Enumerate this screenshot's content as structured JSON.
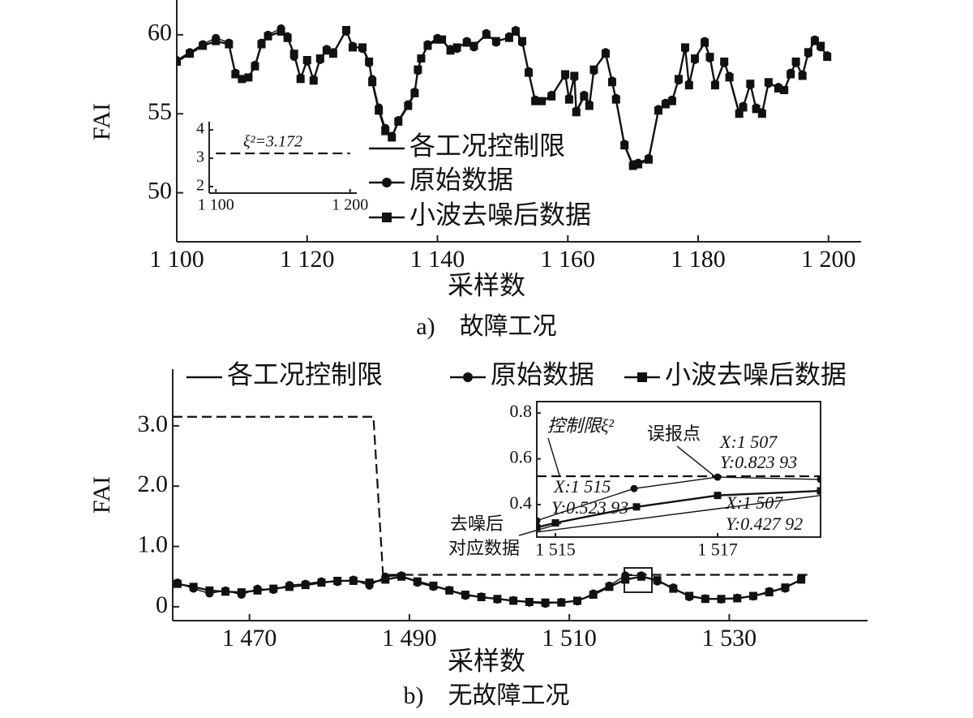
{
  "chart_data": [
    {
      "type": "line",
      "xlabel": "采样数",
      "ylabel": "FAI",
      "caption": "a)　故障工况",
      "xlim": [
        1100,
        1205
      ],
      "ylim": [
        46.9,
        62.2
      ],
      "xticks": [
        {
          "value": 1100,
          "label": "1 100"
        },
        {
          "value": 1120,
          "label": "1 120"
        },
        {
          "value": 1140,
          "label": "1 140"
        },
        {
          "value": 1160,
          "label": "1 160"
        },
        {
          "value": 1180,
          "label": "1 180"
        },
        {
          "value": 1200,
          "label": "1 200"
        }
      ],
      "yticks": [
        50,
        55,
        60
      ],
      "series": [
        {
          "name": "原始数据",
          "color": "#111111",
          "style": "solid",
          "marker": "circle",
          "x": [
            1100,
            1102,
            1104,
            1106,
            1108,
            1109,
            1110,
            1111,
            1112,
            1113,
            1114,
            1116,
            1117,
            1118,
            1119,
            1120,
            1121,
            1122,
            1123,
            1124,
            1126,
            1127,
            1128.5,
            1129.5,
            1130,
            1131,
            1132,
            1133,
            1134,
            1135.5,
            1136.5,
            1137,
            1137.5,
            1138.5,
            1140,
            1140.7,
            1142,
            1143,
            1144.5,
            1145.6,
            1147.5,
            1149,
            1151,
            1152,
            1153,
            1154,
            1155,
            1156,
            1157.5,
            1159.6,
            1160.2,
            1161,
            1161.3,
            1162.5,
            1163.3,
            1164,
            1165.8,
            1166.8,
            1167.4,
            1168.7,
            1170,
            1170.8,
            1172.4,
            1173.9,
            1175,
            1176,
            1177,
            1178,
            1178.6,
            1179.5,
            1181,
            1181.8,
            1182.6,
            1184,
            1184.8,
            1186.3,
            1186.9,
            1188,
            1188.9,
            1189.8,
            1190.8,
            1192.3,
            1193.2,
            1194.2,
            1195,
            1196,
            1196.9,
            1197.9,
            1198.8,
            1199.8
          ],
          "values": [
            58.4,
            58.9,
            59.4,
            59.8,
            59.5,
            57.6,
            57.2,
            57.3,
            58.1,
            59.5,
            60,
            60.4,
            59.9,
            58.6,
            57.3,
            58.3,
            57.2,
            58.4,
            59.1,
            58.9,
            60.2,
            59.3,
            59.1,
            58.2,
            57.2,
            55.4,
            54.1,
            53.6,
            54.6,
            55.6,
            56.4,
            57.7,
            58.5,
            59.4,
            59.8,
            59.7,
            59.1,
            59.1,
            59.6,
            59.2,
            60.1,
            59.5,
            59.9,
            60.3,
            59.5,
            57.7,
            55.9,
            55.8,
            56.2,
            57.4,
            56,
            57.3,
            55.2,
            56.2,
            55.6,
            57.7,
            58.9,
            57.1,
            56,
            53.1,
            51.8,
            51.9,
            52.2,
            55.3,
            55.7,
            55.9,
            57.1,
            59.1,
            56.9,
            58.4,
            59.6,
            58.5,
            56.9,
            58.2,
            57.4,
            55.1,
            55.5,
            56.8,
            55.4,
            55.1,
            56.9,
            56.7,
            56.5,
            57.6,
            58.2,
            57.5,
            58.8,
            59.7,
            59.2,
            58.7
          ]
        },
        {
          "name": "小波去噪后数据",
          "color": "#111111",
          "style": "solid",
          "marker": "square",
          "x": [
            1100,
            1102,
            1104,
            1106,
            1108,
            1109,
            1110,
            1111,
            1112,
            1113,
            1114,
            1116,
            1117,
            1118,
            1119,
            1120,
            1121,
            1122,
            1123,
            1124,
            1126,
            1127,
            1128.5,
            1129.5,
            1130,
            1131,
            1132,
            1133,
            1134,
            1135.5,
            1136.5,
            1137,
            1137.5,
            1138.5,
            1140,
            1140.7,
            1142,
            1143,
            1144.5,
            1145.6,
            1147.5,
            1149,
            1151,
            1152,
            1153,
            1154,
            1155,
            1156,
            1157.5,
            1159.6,
            1160.2,
            1161,
            1161.3,
            1162.5,
            1163.3,
            1164,
            1165.8,
            1166.8,
            1167.4,
            1168.7,
            1170,
            1170.8,
            1172.4,
            1173.9,
            1175,
            1176,
            1177,
            1178,
            1178.6,
            1179.5,
            1181,
            1181.8,
            1182.6,
            1184,
            1184.8,
            1186.3,
            1186.9,
            1188,
            1188.9,
            1189.8,
            1190.8,
            1192.3,
            1193.2,
            1194.2,
            1195,
            1196,
            1196.9,
            1197.9,
            1198.8,
            1199.8
          ],
          "values": [
            58.3,
            58.8,
            59.3,
            59.6,
            59.4,
            57.5,
            57.2,
            57.3,
            58,
            59.4,
            59.9,
            60.2,
            59.8,
            58.8,
            57.2,
            58.4,
            57.1,
            58.5,
            59,
            58.8,
            60.3,
            59.2,
            59.2,
            58.3,
            57,
            55.2,
            53.9,
            53.5,
            54.5,
            55.5,
            56.3,
            57.8,
            58.5,
            59.3,
            59.7,
            59.7,
            59,
            59.2,
            59.5,
            59.3,
            60,
            59.6,
            59.8,
            60.2,
            59.6,
            57.6,
            55.8,
            55.8,
            56.1,
            57.5,
            55.9,
            57.4,
            55.1,
            56.1,
            55.5,
            57.8,
            58.8,
            57,
            55.9,
            53,
            51.7,
            51.8,
            52.1,
            55.2,
            55.6,
            55.8,
            57.2,
            59.2,
            56.8,
            58.5,
            59.5,
            58.6,
            56.8,
            58.3,
            57.3,
            55,
            55.4,
            56.9,
            55.3,
            55,
            57,
            56.6,
            56.5,
            57.5,
            58.3,
            57.4,
            58.9,
            59.6,
            59.3,
            58.6
          ]
        }
      ]
    },
    {
      "type": "line",
      "xlim": [
        1095,
        1205
      ],
      "ylim": [
        1.77,
        4.29
      ],
      "xticks": [
        {
          "value": 1100,
          "label": "1 100"
        },
        {
          "value": 1200,
          "label": "1 200"
        }
      ],
      "yticks": [
        2,
        3,
        4
      ],
      "annotations": [
        "ξ²=3.172"
      ],
      "series": [
        {
          "name": "各工况控制限",
          "color": "#111111",
          "style": "dashed",
          "x": [
            1100,
            1200
          ],
          "values": [
            3.172,
            3.172
          ]
        }
      ]
    },
    {
      "type": "line",
      "xlabel": "采样数",
      "ylabel": "FAI",
      "caption": "b)　无故障工况",
      "xlim": [
        1460.4,
        1547.3
      ],
      "ylim": [
        -0.23,
        3.94
      ],
      "xticks": [
        {
          "value": 1470,
          "label": "1 470"
        },
        {
          "value": 1490,
          "label": "1 490"
        },
        {
          "value": 1510,
          "label": "1 510"
        },
        {
          "value": 1530,
          "label": "1 530"
        }
      ],
      "yticks": [
        0,
        {
          "value": 1,
          "label": "1.0"
        },
        {
          "value": 2,
          "label": "2.0"
        },
        {
          "value": 3,
          "label": "3.0"
        }
      ],
      "series": [
        {
          "name": "各工况控制限",
          "color": "#111111",
          "style": "dashed",
          "x": [
            1460.4,
            1485.5,
            1486.7,
            1540
          ],
          "values": [
            3.15,
            3.15,
            0.53,
            0.53
          ]
        },
        {
          "name": "原始数据",
          "color": "#111111",
          "style": "solid",
          "marker": "circle",
          "x": [
            1461,
            1463,
            1465,
            1467,
            1469,
            1471,
            1473,
            1475,
            1477,
            1479,
            1481,
            1483,
            1485,
            1487,
            1489,
            1491,
            1493,
            1495,
            1497,
            1499,
            1501,
            1503,
            1505,
            1507,
            1509,
            1511,
            1513,
            1515,
            1517,
            1519,
            1521,
            1523,
            1525,
            1527,
            1529,
            1531,
            1533,
            1535,
            1537,
            1539
          ],
          "values": [
            0.4,
            0.3,
            0.22,
            0.27,
            0.2,
            0.3,
            0.28,
            0.36,
            0.38,
            0.42,
            0.41,
            0.45,
            0.35,
            0.5,
            0.52,
            0.4,
            0.33,
            0.28,
            0.18,
            0.17,
            0.12,
            0.11,
            0.07,
            0.05,
            0.08,
            0.09,
            0.22,
            0.35,
            0.52,
            0.52,
            0.42,
            0.32,
            0.16,
            0.14,
            0.12,
            0.15,
            0.17,
            0.26,
            0.3,
            0.47
          ]
        },
        {
          "name": "小波去噪后数据",
          "color": "#111111",
          "style": "solid",
          "marker": "square",
          "x": [
            1461,
            1463,
            1465,
            1467,
            1469,
            1471,
            1473,
            1475,
            1477,
            1479,
            1481,
            1483,
            1485,
            1487,
            1489,
            1491,
            1493,
            1495,
            1497,
            1499,
            1501,
            1503,
            1505,
            1507,
            1509,
            1511,
            1513,
            1515,
            1517,
            1519,
            1521,
            1523,
            1525,
            1527,
            1529,
            1531,
            1533,
            1535,
            1537,
            1539
          ],
          "values": [
            0.38,
            0.33,
            0.27,
            0.25,
            0.24,
            0.27,
            0.3,
            0.33,
            0.36,
            0.4,
            0.43,
            0.43,
            0.4,
            0.45,
            0.5,
            0.42,
            0.35,
            0.27,
            0.2,
            0.16,
            0.13,
            0.1,
            0.08,
            0.07,
            0.07,
            0.1,
            0.2,
            0.33,
            0.45,
            0.5,
            0.44,
            0.3,
            0.18,
            0.13,
            0.13,
            0.14,
            0.18,
            0.24,
            0.32,
            0.45
          ]
        }
      ]
    },
    {
      "type": "line",
      "xlim": [
        1514.77,
        1518.27
      ],
      "ylim": [
        0.258,
        0.85
      ],
      "xticks": [
        {
          "value": 1515,
          "label": "1 515"
        },
        {
          "value": 1517,
          "label": "1 517"
        }
      ],
      "yticks": [
        0.4,
        0.6,
        0.8
      ],
      "annotations": [
        "控制限ξ²",
        "误报点",
        "X:1 507",
        "Y:0.823 93",
        "X:1 515",
        "Y:0.523 93",
        "X:1 507",
        "Y:0.427 92",
        "去噪后",
        "对应数据"
      ],
      "series": [
        {
          "color": "#111111",
          "style": "dashed",
          "x": [
            1514.77,
            1518.27
          ],
          "values": [
            0.524,
            0.524
          ]
        },
        {
          "color": "#111111",
          "style": "solid",
          "marker": "circle",
          "x": [
            1514.77,
            1515.97,
            1517,
            1518.27
          ],
          "values": [
            0.33,
            0.47,
            0.52,
            0.51
          ]
        },
        {
          "color": "#111111",
          "style": "solid",
          "marker": "square",
          "x": [
            1514.77,
            1515,
            1516,
            1517,
            1518.27
          ],
          "values": [
            0.3,
            0.32,
            0.39,
            0.44,
            0.46
          ]
        },
        {
          "color": "#111111",
          "style": "solid",
          "x": [
            1514.77,
            1518.27
          ],
          "values": [
            0.28,
            0.44
          ]
        }
      ]
    }
  ]
}
